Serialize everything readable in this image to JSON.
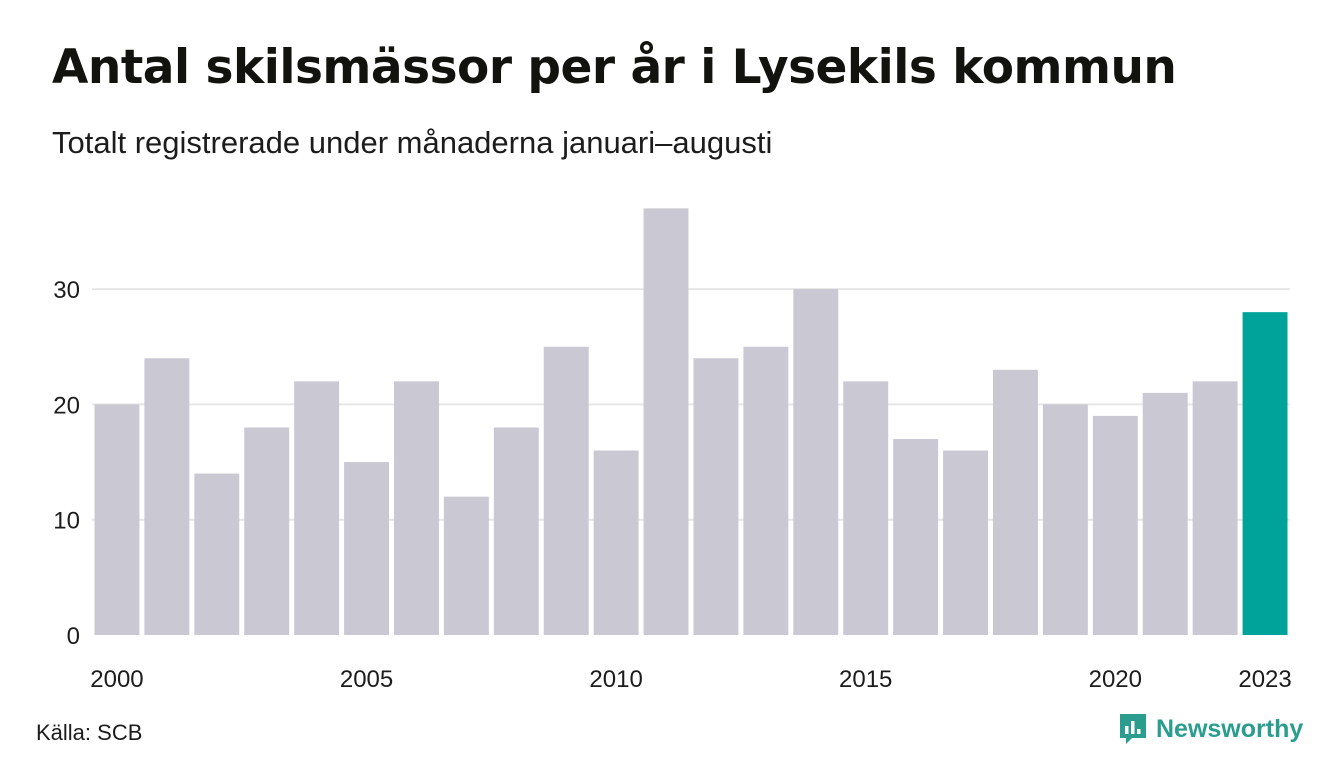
{
  "header": {
    "title": "Antal skilsmässor per år i Lysekils kommun",
    "subtitle": "Totalt registrerade under månaderna januari–augusti"
  },
  "footer": {
    "source": "Källa: SCB",
    "brand": "Newsworthy",
    "brand_icon": "bar-chart-speech-icon"
  },
  "colors": {
    "bar": "#c9c8d3",
    "highlight": "#00a39a",
    "grid": "#e6e6e6",
    "text": "#1c1c1c",
    "brand": "#2a9d8f"
  },
  "chart_data": {
    "type": "bar",
    "title": "Antal skilsmässor per år i Lysekils kommun",
    "subtitle": "Totalt registrerade under månaderna januari–augusti",
    "categories": [
      "2000",
      "2001",
      "2002",
      "2003",
      "2004",
      "2005",
      "2006",
      "2007",
      "2008",
      "2009",
      "2010",
      "2011",
      "2012",
      "2013",
      "2014",
      "2015",
      "2016",
      "2017",
      "2018",
      "2019",
      "2020",
      "2021",
      "2022",
      "2023"
    ],
    "values": [
      20,
      24,
      14,
      18,
      22,
      15,
      22,
      12,
      18,
      25,
      16,
      37,
      24,
      25,
      30,
      22,
      17,
      16,
      23,
      20,
      19,
      21,
      22,
      28
    ],
    "highlight_category": "2023",
    "x_tick_labels": [
      "2000",
      "2005",
      "2010",
      "2015",
      "2020",
      "2023"
    ],
    "y_ticks": [
      0,
      10,
      20,
      30
    ],
    "ylim": [
      0,
      37
    ],
    "xlabel": "",
    "ylabel": "",
    "grid": true,
    "legend": "none"
  }
}
